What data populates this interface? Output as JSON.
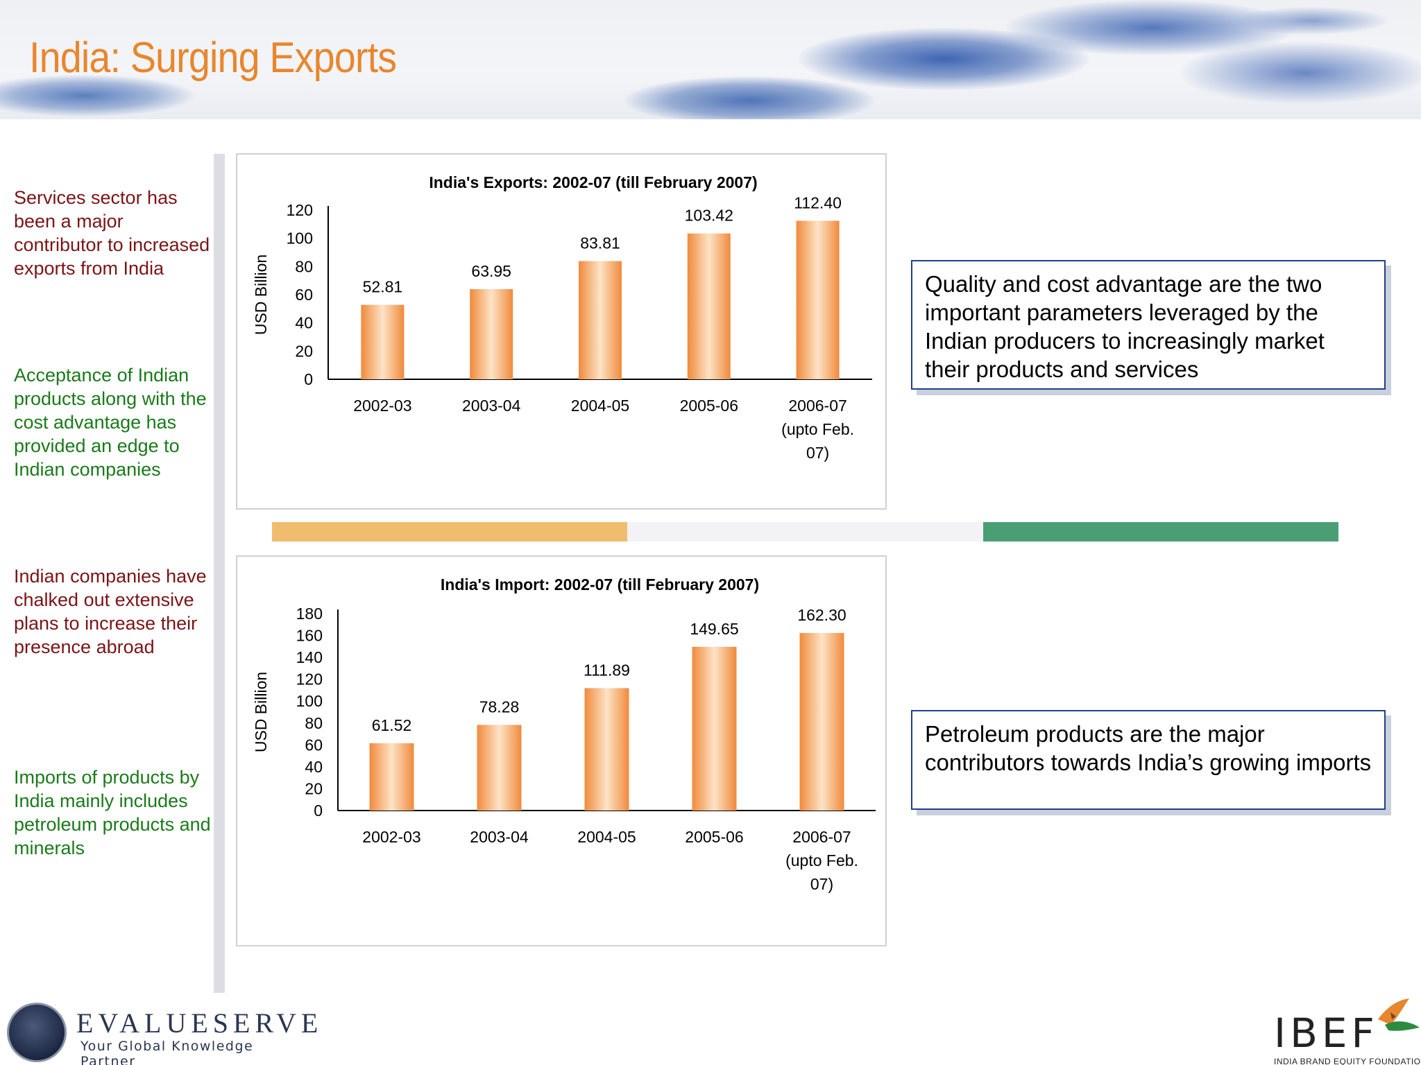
{
  "header": {
    "title": "India: Surging Exports"
  },
  "bullets": [
    {
      "text": "Services sector has been a major contributor to increased exports from India",
      "color": "#7b1416"
    },
    {
      "text": "Acceptance of Indian products along with the cost advantage has provided an edge to Indian companies",
      "color": "#1a7a1a"
    },
    {
      "text": "Indian companies have chalked out extensive plans to increase their presence abroad",
      "color": "#7b1416"
    },
    {
      "text": "Imports of products by India mainly includes petroleum products and minerals",
      "color": "#1a7a1a"
    }
  ],
  "callouts": [
    {
      "text": "Quality and cost advantage are the two important parameters leveraged by the Indian producers to increasingly market their products and services"
    },
    {
      "text": "Petroleum products are the major contributors towards India’s growing imports"
    }
  ],
  "strip_colors": [
    "#f0bd6e",
    "#f3f2f6",
    "#4a9e74"
  ],
  "chart_data": [
    {
      "type": "bar",
      "title": "India's Exports: 2002-07 (till February 2007)",
      "ylabel": "USD Billion",
      "xlabel": "",
      "categories": [
        "2002-03",
        "2003-04",
        "2004-05",
        "2005-06",
        "2006-07 (upto Feb. 07)"
      ],
      "category_lines": [
        [
          "2002-03"
        ],
        [
          "2003-04"
        ],
        [
          "2004-05"
        ],
        [
          "2005-06"
        ],
        [
          "2006-07",
          "(upto Feb.",
          "07)"
        ]
      ],
      "values": [
        52.81,
        63.95,
        83.81,
        103.42,
        112.4
      ],
      "value_labels": [
        "52.81",
        "63.95",
        "83.81",
        "103.42",
        "112.40"
      ],
      "yticks": [
        0,
        20,
        40,
        60,
        80,
        100,
        120
      ],
      "ylim": [
        0,
        120
      ],
      "bar_color": "#f08a3c",
      "grid": false,
      "legend": "none"
    },
    {
      "type": "bar",
      "title": "India's Import: 2002-07 (till February 2007)",
      "ylabel": "USD Billion",
      "xlabel": "",
      "categories": [
        "2002-03",
        "2003-04",
        "2004-05",
        "2005-06",
        "2006-07 (upto Feb. 07)"
      ],
      "category_lines": [
        [
          "2002-03"
        ],
        [
          "2003-04"
        ],
        [
          "2004-05"
        ],
        [
          "2005-06"
        ],
        [
          "2006-07",
          "(upto Feb.",
          "07)"
        ]
      ],
      "values": [
        61.52,
        78.28,
        111.89,
        149.65,
        162.3
      ],
      "value_labels": [
        "61.52",
        "78.28",
        "111.89",
        "149.65",
        "162.30"
      ],
      "yticks": [
        0,
        20,
        40,
        60,
        80,
        100,
        120,
        140,
        160,
        180
      ],
      "ylim": [
        0,
        180
      ],
      "bar_color": "#f08a3c",
      "grid": false,
      "legend": "none"
    }
  ],
  "logos": {
    "evalueserve_name": "EVALUESERVE",
    "evalueserve_tagline": "Your Global Knowledge Partner",
    "ibef_name": "IBEF",
    "ibef_tagline": "INDIA BRAND EQUITY FOUNDATION"
  }
}
